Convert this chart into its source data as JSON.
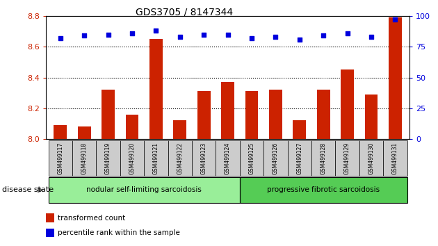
{
  "title": "GDS3705 / 8147344",
  "samples": [
    "GSM499117",
    "GSM499118",
    "GSM499119",
    "GSM499120",
    "GSM499121",
    "GSM499122",
    "GSM499123",
    "GSM499124",
    "GSM499125",
    "GSM499126",
    "GSM499127",
    "GSM499128",
    "GSM499129",
    "GSM499130",
    "GSM499131"
  ],
  "transformed_count": [
    8.09,
    8.08,
    8.32,
    8.16,
    8.65,
    8.12,
    8.31,
    8.37,
    8.31,
    8.32,
    8.12,
    8.32,
    8.45,
    8.29,
    8.79
  ],
  "percentile_rank": [
    82,
    84,
    85,
    86,
    88,
    83,
    85,
    85,
    82,
    83,
    81,
    84,
    86,
    83,
    97
  ],
  "ylim_left": [
    8.0,
    8.8
  ],
  "ylim_right": [
    0,
    100
  ],
  "yticks_left": [
    8.0,
    8.2,
    8.4,
    8.6,
    8.8
  ],
  "yticks_right": [
    0,
    25,
    50,
    75,
    100
  ],
  "grid_lines": [
    8.2,
    8.4,
    8.6
  ],
  "group1_label": "nodular self-limiting sarcoidosis",
  "group2_label": "progressive fibrotic sarcoidosis",
  "group1_count": 8,
  "group2_count": 7,
  "disease_state_label": "disease state",
  "legend_bar_label": "transformed count",
  "legend_dot_label": "percentile rank within the sample",
  "bar_color": "#cc2200",
  "dot_color": "#0000dd",
  "group1_color": "#99ee99",
  "group2_color": "#55cc55",
  "tick_bg_color": "#cccccc",
  "left_axis_color": "#cc2200",
  "right_axis_color": "#0000dd"
}
